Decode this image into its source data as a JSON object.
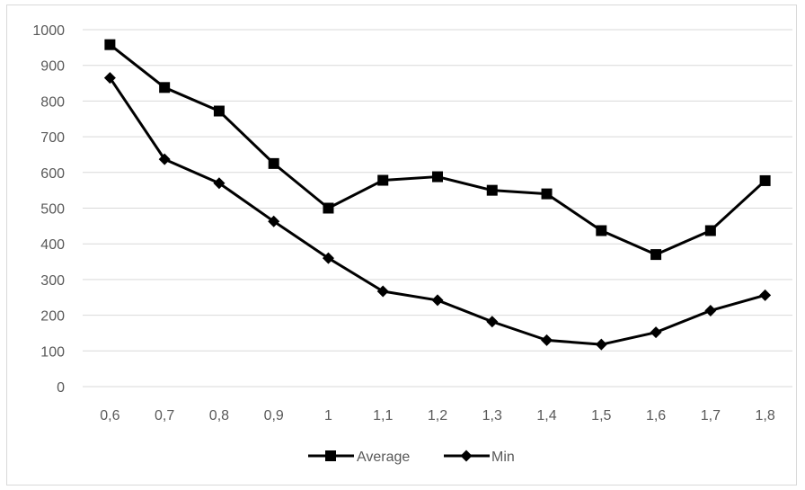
{
  "chart_data": {
    "type": "line",
    "categories": [
      "0,6",
      "0,7",
      "0,8",
      "0,9",
      "1",
      "1,1",
      "1,2",
      "1,3",
      "1,4",
      "1,5",
      "1,6",
      "1,7",
      "1,8"
    ],
    "series": [
      {
        "name": "Average",
        "marker": "square",
        "color": "#000000",
        "values": [
          958,
          838,
          772,
          625,
          500,
          578,
          588,
          550,
          540,
          437,
          370,
          437,
          577
        ]
      },
      {
        "name": "Min",
        "marker": "diamond",
        "color": "#000000",
        "values": [
          865,
          637,
          570,
          463,
          360,
          267,
          242,
          182,
          130,
          118,
          152,
          213,
          256
        ]
      }
    ],
    "ylim": [
      0,
      1000
    ],
    "yticks": [
      0,
      100,
      200,
      300,
      400,
      500,
      600,
      700,
      800,
      900,
      1000
    ],
    "grid": true,
    "legend_position": "bottom",
    "title": "",
    "xlabel": "",
    "ylabel": ""
  }
}
